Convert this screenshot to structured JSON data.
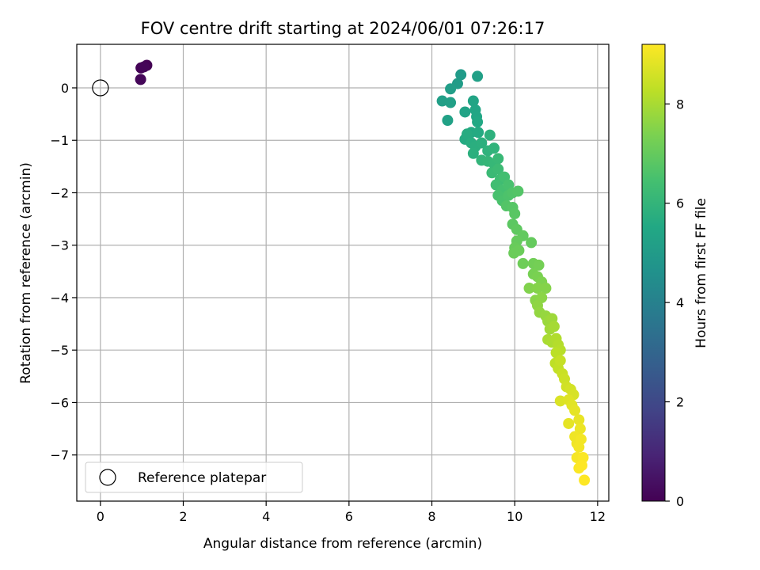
{
  "chart_data": {
    "type": "scatter",
    "title": "FOV centre drift starting at 2024/06/01 07:26:17",
    "xlabel": "Angular distance from reference (arcmin)",
    "ylabel": "Rotation from reference (arcmin)",
    "xlim": [
      -0.57,
      12.27
    ],
    "ylim": [
      -7.88,
      0.83
    ],
    "xticks": [
      0,
      2,
      4,
      6,
      8,
      10,
      12
    ],
    "xtick_labels": [
      "0",
      "2",
      "4",
      "6",
      "8",
      "10",
      "12"
    ],
    "yticks": [
      0,
      -1,
      -2,
      -3,
      -4,
      -5,
      -6,
      -7
    ],
    "ytick_labels": [
      "0",
      "−1",
      "−2",
      "−3",
      "−4",
      "−5",
      "−6",
      "−7"
    ],
    "grid": true,
    "legend": {
      "placement": "lower-left",
      "entries": [
        "Reference platepar"
      ]
    },
    "reference_point": {
      "x": 0,
      "y": 0,
      "label": "Reference platepar"
    },
    "colorbar": {
      "label": "Hours from first FF file",
      "range": [
        0,
        9.2
      ],
      "ticks": [
        0,
        2,
        4,
        6,
        8
      ],
      "tick_labels": [
        "0",
        "2",
        "4",
        "6",
        "8"
      ],
      "colormap": "viridis"
    },
    "series": [
      {
        "points": [
          [
            1.12,
            0.43,
            0.0
          ],
          [
            0.98,
            0.38,
            0.05
          ],
          [
            1.05,
            0.4,
            0.1
          ],
          [
            0.97,
            0.16,
            0.15
          ],
          [
            8.7,
            0.25,
            5.0
          ],
          [
            9.1,
            0.22,
            5.2
          ],
          [
            8.62,
            0.08,
            5.05
          ],
          [
            8.45,
            -0.02,
            5.1
          ],
          [
            8.25,
            -0.25,
            5.15
          ],
          [
            8.45,
            -0.28,
            5.2
          ],
          [
            8.38,
            -0.62,
            5.25
          ],
          [
            8.8,
            -0.46,
            5.3
          ],
          [
            9.0,
            -0.25,
            5.35
          ],
          [
            9.05,
            -0.42,
            5.4
          ],
          [
            9.08,
            -0.55,
            5.45
          ],
          [
            9.1,
            -0.65,
            5.5
          ],
          [
            8.95,
            -0.85,
            5.55
          ],
          [
            9.12,
            -0.85,
            5.6
          ],
          [
            8.8,
            -0.98,
            5.6
          ],
          [
            8.85,
            -0.88,
            5.65
          ],
          [
            8.95,
            -1.05,
            5.7
          ],
          [
            9.05,
            -1.12,
            5.75
          ],
          [
            9.0,
            -1.25,
            5.8
          ],
          [
            9.2,
            -1.05,
            5.8
          ],
          [
            9.4,
            -0.9,
            5.85
          ],
          [
            9.35,
            -1.2,
            5.9
          ],
          [
            9.5,
            -1.15,
            5.95
          ],
          [
            9.2,
            -1.38,
            6.0
          ],
          [
            9.35,
            -1.4,
            6.05
          ],
          [
            9.5,
            -1.45,
            6.1
          ],
          [
            9.6,
            -1.35,
            6.15
          ],
          [
            9.45,
            -1.62,
            6.2
          ],
          [
            9.6,
            -1.55,
            6.25
          ],
          [
            9.65,
            -1.75,
            6.3
          ],
          [
            9.55,
            -1.85,
            6.35
          ],
          [
            9.75,
            -1.7,
            6.4
          ],
          [
            9.7,
            -1.95,
            6.45
          ],
          [
            9.85,
            -1.85,
            6.5
          ],
          [
            9.6,
            -2.05,
            6.5
          ],
          [
            9.7,
            -2.15,
            6.55
          ],
          [
            9.85,
            -2.05,
            6.6
          ],
          [
            9.95,
            -2.0,
            6.65
          ],
          [
            10.08,
            -1.97,
            6.7
          ],
          [
            9.8,
            -2.25,
            6.7
          ],
          [
            9.95,
            -2.28,
            6.75
          ],
          [
            10.0,
            -2.4,
            6.8
          ],
          [
            9.95,
            -2.6,
            6.85
          ],
          [
            10.05,
            -2.7,
            6.9
          ],
          [
            10.2,
            -2.82,
            6.95
          ],
          [
            10.05,
            -2.92,
            7.0
          ],
          [
            10.4,
            -2.95,
            7.0
          ],
          [
            10.0,
            -3.05,
            7.05
          ],
          [
            10.1,
            -3.1,
            7.1
          ],
          [
            9.98,
            -3.15,
            7.1
          ],
          [
            10.2,
            -3.35,
            7.15
          ],
          [
            10.45,
            -3.35,
            7.2
          ],
          [
            10.58,
            -3.38,
            7.25
          ],
          [
            10.45,
            -3.55,
            7.3
          ],
          [
            10.55,
            -3.6,
            7.35
          ],
          [
            10.65,
            -3.7,
            7.4
          ],
          [
            10.35,
            -3.82,
            7.45
          ],
          [
            10.55,
            -3.82,
            7.5
          ],
          [
            10.75,
            -3.82,
            7.5
          ],
          [
            10.5,
            -4.05,
            7.55
          ],
          [
            10.65,
            -4.0,
            7.6
          ],
          [
            10.55,
            -4.15,
            7.65
          ],
          [
            10.6,
            -4.28,
            7.7
          ],
          [
            10.75,
            -4.35,
            7.75
          ],
          [
            10.8,
            -4.45,
            7.8
          ],
          [
            10.9,
            -4.4,
            7.85
          ],
          [
            10.85,
            -4.6,
            7.9
          ],
          [
            10.95,
            -4.55,
            7.95
          ],
          [
            10.8,
            -4.8,
            8.0
          ],
          [
            10.9,
            -4.85,
            8.05
          ],
          [
            11.0,
            -4.78,
            8.1
          ],
          [
            11.05,
            -4.9,
            8.15
          ],
          [
            11.1,
            -5.0,
            8.2
          ],
          [
            11.0,
            -5.05,
            8.25
          ],
          [
            10.98,
            -5.25,
            8.3
          ],
          [
            11.05,
            -5.35,
            8.35
          ],
          [
            11.1,
            -5.2,
            8.4
          ],
          [
            11.15,
            -5.45,
            8.45
          ],
          [
            11.2,
            -5.55,
            8.5
          ],
          [
            11.25,
            -5.7,
            8.55
          ],
          [
            11.35,
            -5.75,
            8.6
          ],
          [
            11.42,
            -5.85,
            8.65
          ],
          [
            11.1,
            -5.97,
            8.7
          ],
          [
            11.3,
            -5.95,
            8.75
          ],
          [
            11.38,
            -6.05,
            8.8
          ],
          [
            11.45,
            -6.15,
            8.85
          ],
          [
            11.3,
            -6.4,
            8.85
          ],
          [
            11.55,
            -6.33,
            8.9
          ],
          [
            11.58,
            -6.5,
            8.95
          ],
          [
            11.45,
            -6.65,
            9.0
          ],
          [
            11.5,
            -6.78,
            9.0
          ],
          [
            11.6,
            -6.7,
            9.05
          ],
          [
            11.55,
            -6.85,
            9.05
          ],
          [
            11.5,
            -7.05,
            9.1
          ],
          [
            11.6,
            -7.12,
            9.1
          ],
          [
            11.65,
            -7.05,
            9.15
          ],
          [
            11.55,
            -7.25,
            9.15
          ],
          [
            11.62,
            -7.2,
            9.2
          ],
          [
            11.68,
            -7.48,
            9.2
          ]
        ]
      }
    ]
  }
}
